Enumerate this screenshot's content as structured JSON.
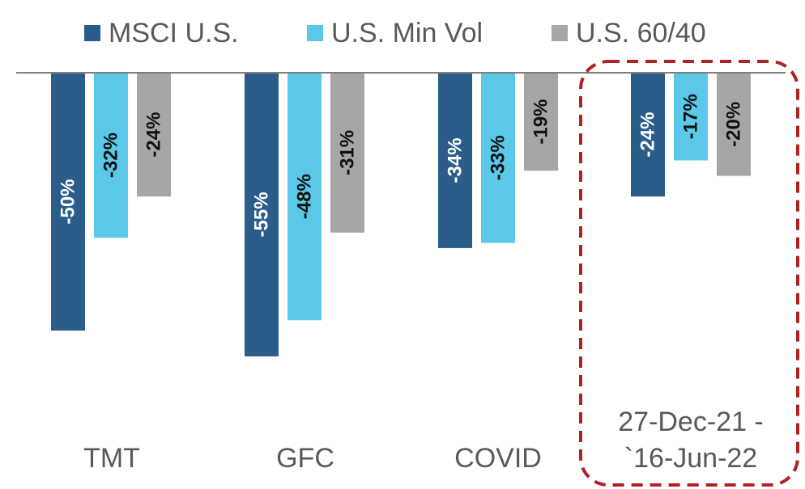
{
  "chart_data": {
    "type": "bar",
    "title": "",
    "xlabel": "",
    "ylabel": "",
    "ylim": [
      -62,
      0
    ],
    "legend_position": "top",
    "grid": false,
    "categories": [
      "TMT",
      "GFC",
      "COVID",
      "27-Dec-21 -\n`16-Jun-22"
    ],
    "category_lines": [
      [
        "TMT"
      ],
      [
        "GFC"
      ],
      [
        "COVID"
      ],
      [
        "27-Dec-21 -",
        "`16-Jun-22"
      ]
    ],
    "series": [
      {
        "name": "MSCI U.S.",
        "color": "#2a5d8a",
        "label_color": "#ffffff",
        "values": [
          -50,
          -55,
          -34,
          -24
        ],
        "labels": [
          "-50%",
          "-55%",
          "-34%",
          "-24%"
        ]
      },
      {
        "name": "U.S. Min Vol",
        "color": "#5bc8e8",
        "label_color": "#111111",
        "values": [
          -32,
          -48,
          -33,
          -17
        ],
        "labels": [
          "-32%",
          "-48%",
          "-33%",
          "-17%"
        ]
      },
      {
        "name": "U.S. 60/40",
        "color": "#a6a6a6",
        "label_color": "#111111",
        "values": [
          -24,
          -31,
          -19,
          -20
        ],
        "labels": [
          "-24%",
          "-31%",
          "-19%",
          "-20%"
        ]
      }
    ],
    "highlight": {
      "category_index": 3,
      "style": "dashed-rounded-box",
      "color": "#b22222"
    }
  }
}
